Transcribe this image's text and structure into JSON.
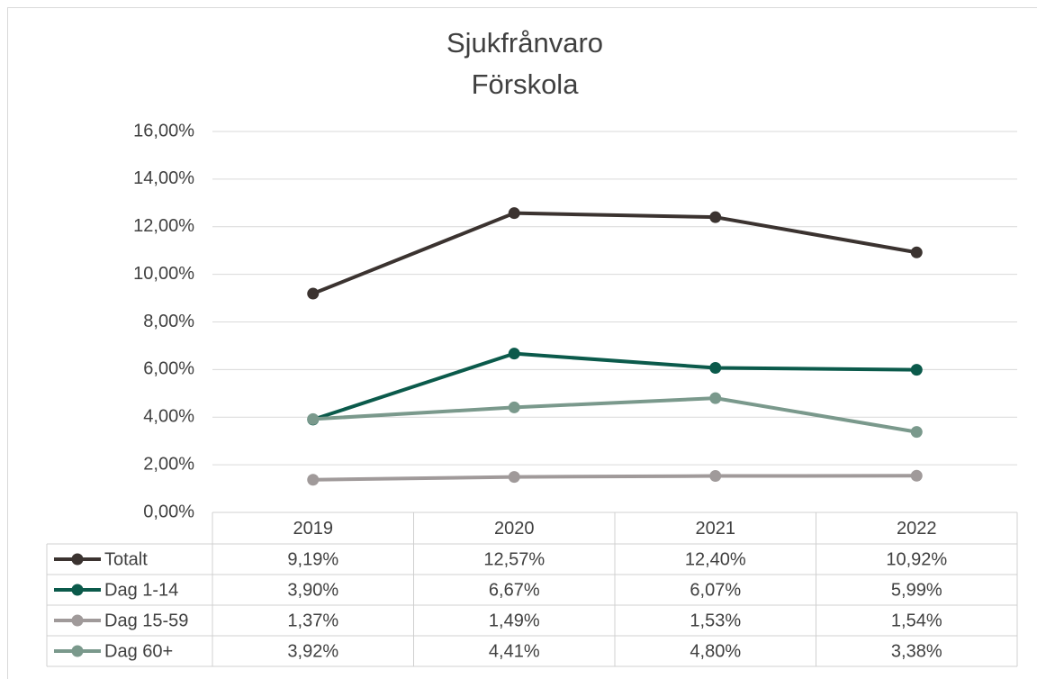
{
  "chart_data": {
    "type": "line",
    "title": [
      "Sjukfrånvaro",
      "Förskola"
    ],
    "categories": [
      "2019",
      "2020",
      "2021",
      "2022"
    ],
    "series": [
      {
        "name": "Totalt",
        "color": "#3b3330",
        "values": [
          9.19,
          12.57,
          12.4,
          10.92
        ],
        "value_labels": [
          "9,19%",
          "12,57%",
          "12,40%",
          "10,92%"
        ]
      },
      {
        "name": "Dag 1-14",
        "color": "#0b5a4b",
        "values": [
          3.9,
          6.67,
          6.07,
          5.99
        ],
        "value_labels": [
          "3,90%",
          "6,67%",
          "6,07%",
          "5,99%"
        ]
      },
      {
        "name": "Dag 15-59",
        "color": "#a09a9a",
        "values": [
          1.37,
          1.49,
          1.53,
          1.54
        ],
        "value_labels": [
          "1,37%",
          "1,49%",
          "1,53%",
          "1,54%"
        ]
      },
      {
        "name": "Dag 60+",
        "color": "#7a998c",
        "values": [
          3.92,
          4.41,
          4.8,
          3.38
        ],
        "value_labels": [
          "3,92%",
          "4,41%",
          "4,80%",
          "3,38%"
        ]
      }
    ],
    "ylim": [
      0,
      16
    ],
    "yticks": [
      {
        "value": 0,
        "label": "0,00%"
      },
      {
        "value": 2,
        "label": "2,00%"
      },
      {
        "value": 4,
        "label": "4,00%"
      },
      {
        "value": 6,
        "label": "6,00%"
      },
      {
        "value": 8,
        "label": "8,00%"
      },
      {
        "value": 10,
        "label": "10,00%"
      },
      {
        "value": 12,
        "label": "12,00%"
      },
      {
        "value": 14,
        "label": "14,00%"
      },
      {
        "value": 16,
        "label": "16,00%"
      }
    ],
    "grid": true
  }
}
